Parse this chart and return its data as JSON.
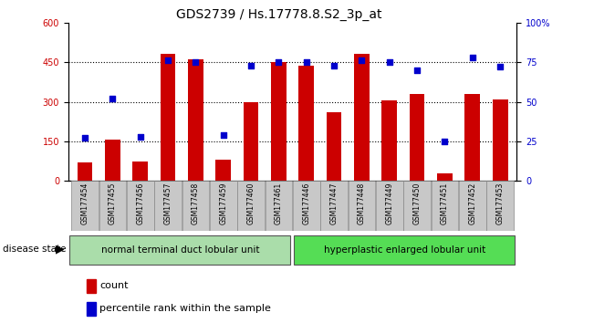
{
  "title": "GDS2739 / Hs.17778.8.S2_3p_at",
  "categories": [
    "GSM177454",
    "GSM177455",
    "GSM177456",
    "GSM177457",
    "GSM177458",
    "GSM177459",
    "GSM177460",
    "GSM177461",
    "GSM177446",
    "GSM177447",
    "GSM177448",
    "GSM177449",
    "GSM177450",
    "GSM177451",
    "GSM177452",
    "GSM177453"
  ],
  "counts": [
    70,
    155,
    75,
    480,
    460,
    80,
    300,
    450,
    435,
    260,
    480,
    305,
    330,
    30,
    330,
    310
  ],
  "percentiles": [
    27,
    52,
    28,
    76,
    75,
    29,
    73,
    75,
    75,
    73,
    76,
    75,
    70,
    25,
    78,
    72
  ],
  "bar_color": "#cc0000",
  "dot_color": "#0000cc",
  "ylim_left": [
    0,
    600
  ],
  "ylim_right": [
    0,
    100
  ],
  "yticks_left": [
    0,
    150,
    300,
    450,
    600
  ],
  "yticks_right": [
    0,
    25,
    50,
    75,
    100
  ],
  "ytick_labels_right": [
    "0",
    "25",
    "50",
    "75",
    "100%"
  ],
  "group1_label": "normal terminal duct lobular unit",
  "group2_label": "hyperplastic enlarged lobular unit",
  "group1_count": 8,
  "group2_count": 8,
  "disease_state_label": "disease state",
  "legend_count_label": "count",
  "legend_percentile_label": "percentile rank within the sample",
  "background_color": "#ffffff",
  "group1_color": "#aaddaa",
  "group2_color": "#55dd55",
  "xticklabel_bg": "#c8c8c8",
  "title_fontsize": 10,
  "tick_fontsize": 7,
  "bar_width": 0.55,
  "dot_size": 18
}
